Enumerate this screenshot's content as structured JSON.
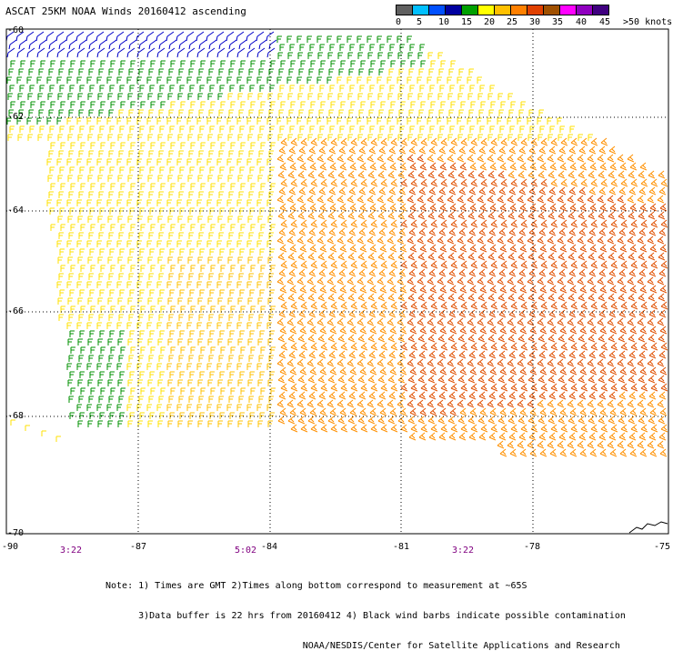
{
  "title": "ASCAT 25KM NOAA Winds 20160412 ascending",
  "legend": {
    "unit_label": ">50 knots",
    "ticks": [
      "0",
      "5",
      "10",
      "15",
      "20",
      "25",
      "30",
      "35",
      "40",
      "45"
    ],
    "colors": [
      "#606060",
      "#00bfff",
      "#0050ff",
      "#0000a0",
      "#00a000",
      "#ffff00",
      "#ffc000",
      "#ff8000",
      "#e04000",
      "#a05000",
      "#ff00ff",
      "#9000c0",
      "#400080"
    ]
  },
  "map": {
    "lat_labels": [
      "-60",
      "-62",
      "-64",
      "-66",
      "-68",
      "-70"
    ],
    "lon_labels": [
      "-90",
      "-87",
      "-84",
      "-81",
      "-78",
      "-75"
    ],
    "time_labels": [
      "3:22",
      "5:02",
      "3:22"
    ],
    "barb_color_bins": [
      "blue",
      "green",
      "yellow",
      "gold",
      "orange",
      "red-orange"
    ]
  },
  "notes": [
    "Note: 1) Times are GMT 2)Times along bottom correspond to measurement at ~65S",
    "      3)Data buffer is 22 hrs from 20160412 4) Black wind barbs indicate possible contamination",
    "                                    NOAA/NESDIS/Center for Satellite Applications and Research"
  ]
}
